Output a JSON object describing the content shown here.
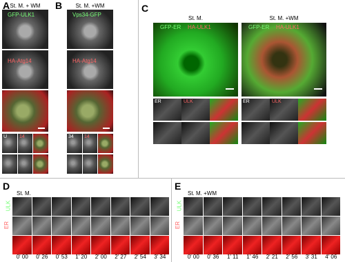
{
  "panel_A": {
    "letter": "A",
    "condition": "St. M. + WM",
    "channels": [
      "GFP-ULK1",
      "HA-Atg14"
    ],
    "inset_labels": [
      "U",
      "14"
    ]
  },
  "panel_B": {
    "letter": "B",
    "condition": "St. M. +WM",
    "channels": [
      "Vps34-GFP",
      "HA-Atg14"
    ],
    "inset_labels": [
      "34",
      "14"
    ]
  },
  "panel_C": {
    "letter": "C",
    "conditions": [
      {
        "title": "St. M.",
        "channels": [
          "GFP-ER",
          "HA-ULK1"
        ],
        "inset_labels": [
          "ER",
          "ULK"
        ]
      },
      {
        "title": "St. M. +WM",
        "channels": [
          "GFP-ER",
          "HA-ULK1"
        ],
        "inset_labels": [
          "ER",
          "ULK"
        ]
      }
    ]
  },
  "panel_D": {
    "letter": "D",
    "condition": "St. M.",
    "rows": [
      "ULK",
      "ER"
    ],
    "times": [
      "0' 00",
      "0' 26",
      "0' 53",
      "1' 20",
      "2' 00",
      "2' 27",
      "2' 54",
      "3' 34"
    ]
  },
  "panel_E": {
    "letter": "E",
    "condition": "St. M. +WM",
    "rows": [
      "ULK",
      "ER"
    ],
    "times": [
      "0' 00",
      "0' 36",
      "1' 11",
      "1' 46",
      "2' 21",
      "2' 56",
      "3' 31",
      "4' 06"
    ]
  }
}
